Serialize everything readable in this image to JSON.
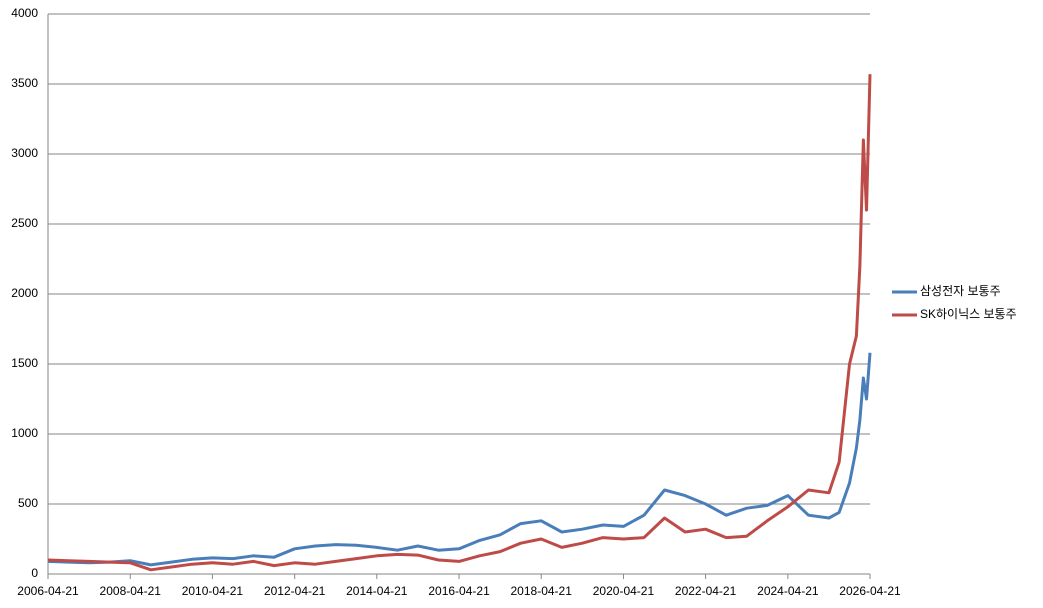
{
  "chart_data": {
    "type": "line",
    "x": [
      "2006-04-21",
      "2006-10-21",
      "2007-04-21",
      "2007-10-21",
      "2008-04-21",
      "2008-10-21",
      "2009-04-21",
      "2009-10-21",
      "2010-04-21",
      "2010-10-21",
      "2011-04-21",
      "2011-10-21",
      "2012-04-21",
      "2012-10-21",
      "2013-04-21",
      "2013-10-21",
      "2014-04-21",
      "2014-10-21",
      "2015-04-21",
      "2015-10-21",
      "2016-04-21",
      "2016-10-21",
      "2017-04-21",
      "2017-10-21",
      "2018-04-21",
      "2018-10-21",
      "2019-04-21",
      "2019-10-21",
      "2020-04-21",
      "2020-10-21",
      "2021-04-21",
      "2021-10-21",
      "2022-04-21",
      "2022-10-21",
      "2023-04-21",
      "2023-10-21",
      "2024-04-21",
      "2024-10-21",
      "2025-04-21",
      "2025-07-21",
      "2025-10-21",
      "2025-12-21",
      "2026-01-21",
      "2026-02-21",
      "2026-03-21",
      "2026-04-21"
    ],
    "series": [
      {
        "name": "삼성전자 보통주",
        "color": "#4a7ebb",
        "values": [
          90,
          85,
          80,
          85,
          95,
          65,
          85,
          105,
          115,
          110,
          130,
          120,
          180,
          200,
          210,
          205,
          190,
          170,
          200,
          170,
          180,
          240,
          280,
          360,
          380,
          300,
          320,
          350,
          340,
          420,
          600,
          560,
          500,
          420,
          470,
          490,
          560,
          420,
          400,
          440,
          650,
          900,
          1100,
          1400,
          1250,
          1580
        ]
      },
      {
        "name": "SK하이닉스 보통주",
        "color": "#be4b48",
        "values": [
          100,
          95,
          90,
          85,
          80,
          30,
          50,
          70,
          80,
          70,
          90,
          60,
          80,
          70,
          90,
          110,
          130,
          140,
          135,
          100,
          90,
          130,
          160,
          220,
          250,
          190,
          220,
          260,
          250,
          260,
          400,
          300,
          320,
          260,
          270,
          380,
          480,
          600,
          580,
          800,
          1500,
          1700,
          2200,
          3100,
          2600,
          3570
        ]
      }
    ],
    "xlim": [
      "2006-04-21",
      "2026-04-21"
    ],
    "xticks": [
      "2006-04-21",
      "2008-04-21",
      "2010-04-21",
      "2012-04-21",
      "2014-04-21",
      "2016-04-21",
      "2018-04-21",
      "2020-04-21",
      "2022-04-21",
      "2024-04-21",
      "2026-04-21"
    ],
    "ylim": [
      0,
      4000
    ],
    "yticks": [
      0,
      500,
      1000,
      1500,
      2000,
      2500,
      3000,
      3500,
      4000
    ],
    "grid": true,
    "legend": "right"
  }
}
